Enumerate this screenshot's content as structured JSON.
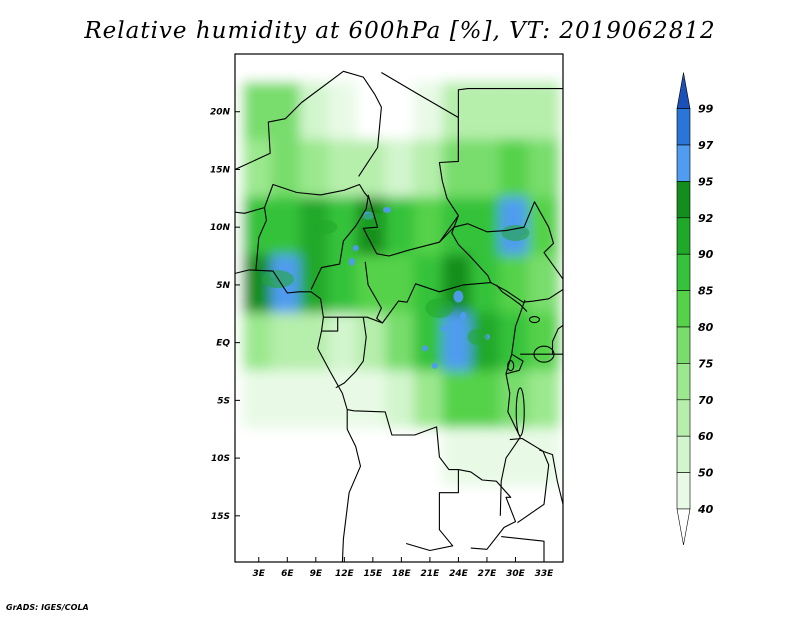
{
  "title": "Relative humidity at 600hPa [%], VT: 2019062812",
  "credit": "GrADS: IGES/COLA",
  "lat_labels": [
    "20N",
    "15N",
    "10N",
    "5N",
    "EQ",
    "5S",
    "10S",
    "15S"
  ],
  "lat_values": [
    20,
    15,
    10,
    5,
    0,
    -5,
    -10,
    -15
  ],
  "lon_labels": [
    "3E",
    "6E",
    "9E",
    "12E",
    "15E",
    "18E",
    "21E",
    "24E",
    "27E",
    "30E",
    "33E"
  ],
  "lon_values": [
    3,
    6,
    9,
    12,
    15,
    18,
    21,
    24,
    27,
    30,
    33
  ],
  "map_extent": {
    "lon_min": 0.5,
    "lon_max": 35,
    "lat_min": -19,
    "lat_max": 25
  },
  "colorbar": {
    "levels": [
      "40",
      "50",
      "60",
      "70",
      "75",
      "80",
      "85",
      "90",
      "92",
      "95",
      "97",
      "99"
    ],
    "colors": [
      "#ffffff",
      "#e8fae6",
      "#d2f5cd",
      "#b6eeac",
      "#9be88e",
      "#78dd6c",
      "#55d24a",
      "#36c23a",
      "#20a829",
      "#138e1c",
      "#4f9cf0",
      "#2a75d8",
      "#1a50b8"
    ]
  },
  "chart_data": {
    "type": "heatmap",
    "title": "Relative humidity at 600hPa [%], VT: 2019062812",
    "xlabel": "",
    "ylabel": "",
    "x_ticks": [
      "3E",
      "6E",
      "9E",
      "12E",
      "15E",
      "18E",
      "21E",
      "24E",
      "27E",
      "30E",
      "33E"
    ],
    "y_ticks": [
      "20N",
      "15N",
      "10N",
      "5N",
      "EQ",
      "5S",
      "10S",
      "15S"
    ],
    "xlim": [
      0.5,
      35
    ],
    "ylim": [
      -19,
      25
    ],
    "units": "%",
    "legend_placement": "right",
    "cells": [
      {
        "lon": 3,
        "lat": 20,
        "v": 75
      },
      {
        "lon": 6,
        "lat": 20,
        "v": 78
      },
      {
        "lon": 9,
        "lat": 20,
        "v": 55
      },
      {
        "lon": 12,
        "lat": 20,
        "v": 40
      },
      {
        "lon": 15,
        "lat": 20,
        "v": 30
      },
      {
        "lon": 18,
        "lat": 20,
        "v": 30
      },
      {
        "lon": 21,
        "lat": 20,
        "v": 45
      },
      {
        "lon": 24,
        "lat": 20,
        "v": 60
      },
      {
        "lon": 27,
        "lat": 20,
        "v": 65
      },
      {
        "lon": 30,
        "lat": 20,
        "v": 68
      },
      {
        "lon": 33,
        "lat": 20,
        "v": 60
      },
      {
        "lon": 3,
        "lat": 15,
        "v": 70
      },
      {
        "lon": 6,
        "lat": 15,
        "v": 75
      },
      {
        "lon": 9,
        "lat": 15,
        "v": 70
      },
      {
        "lon": 12,
        "lat": 15,
        "v": 68
      },
      {
        "lon": 15,
        "lat": 15,
        "v": 60
      },
      {
        "lon": 18,
        "lat": 15,
        "v": 55
      },
      {
        "lon": 21,
        "lat": 15,
        "v": 65
      },
      {
        "lon": 24,
        "lat": 15,
        "v": 75
      },
      {
        "lon": 27,
        "lat": 15,
        "v": 78
      },
      {
        "lon": 30,
        "lat": 15,
        "v": 80
      },
      {
        "lon": 33,
        "lat": 15,
        "v": 75
      },
      {
        "lon": 3,
        "lat": 10,
        "v": 85
      },
      {
        "lon": 6,
        "lat": 10,
        "v": 88
      },
      {
        "lon": 9,
        "lat": 10,
        "v": 90
      },
      {
        "lon": 12,
        "lat": 10,
        "v": 88
      },
      {
        "lon": 15,
        "lat": 10,
        "v": 93
      },
      {
        "lon": 18,
        "lat": 10,
        "v": 85
      },
      {
        "lon": 21,
        "lat": 10,
        "v": 80
      },
      {
        "lon": 24,
        "lat": 10,
        "v": 85
      },
      {
        "lon": 27,
        "lat": 10,
        "v": 86
      },
      {
        "lon": 30,
        "lat": 10,
        "v": 95
      },
      {
        "lon": 33,
        "lat": 10,
        "v": 84
      },
      {
        "lon": 3,
        "lat": 5,
        "v": 92
      },
      {
        "lon": 6,
        "lat": 5,
        "v": 95
      },
      {
        "lon": 9,
        "lat": 5,
        "v": 90
      },
      {
        "lon": 12,
        "lat": 5,
        "v": 85
      },
      {
        "lon": 15,
        "lat": 5,
        "v": 80
      },
      {
        "lon": 18,
        "lat": 5,
        "v": 80
      },
      {
        "lon": 21,
        "lat": 5,
        "v": 88
      },
      {
        "lon": 24,
        "lat": 5,
        "v": 92
      },
      {
        "lon": 27,
        "lat": 5,
        "v": 85
      },
      {
        "lon": 30,
        "lat": 5,
        "v": 80
      },
      {
        "lon": 33,
        "lat": 5,
        "v": 75
      },
      {
        "lon": 3,
        "lat": 0,
        "v": 70
      },
      {
        "lon": 6,
        "lat": 0,
        "v": 65
      },
      {
        "lon": 9,
        "lat": 0,
        "v": 60
      },
      {
        "lon": 12,
        "lat": 0,
        "v": 55
      },
      {
        "lon": 15,
        "lat": 0,
        "v": 65
      },
      {
        "lon": 18,
        "lat": 0,
        "v": 75
      },
      {
        "lon": 21,
        "lat": 0,
        "v": 88
      },
      {
        "lon": 24,
        "lat": 0,
        "v": 95
      },
      {
        "lon": 27,
        "lat": 0,
        "v": 90
      },
      {
        "lon": 30,
        "lat": 0,
        "v": 85
      },
      {
        "lon": 33,
        "lat": 0,
        "v": 80
      },
      {
        "lon": 3,
        "lat": -5,
        "v": 40
      },
      {
        "lon": 6,
        "lat": -5,
        "v": 40
      },
      {
        "lon": 9,
        "lat": -5,
        "v": 40
      },
      {
        "lon": 12,
        "lat": -5,
        "v": 45
      },
      {
        "lon": 15,
        "lat": -5,
        "v": 45
      },
      {
        "lon": 18,
        "lat": -5,
        "v": 55
      },
      {
        "lon": 21,
        "lat": -5,
        "v": 70
      },
      {
        "lon": 24,
        "lat": -5,
        "v": 80
      },
      {
        "lon": 27,
        "lat": -5,
        "v": 80
      },
      {
        "lon": 30,
        "lat": -5,
        "v": 75
      },
      {
        "lon": 33,
        "lat": -5,
        "v": 70
      },
      {
        "lon": 3,
        "lat": -10,
        "v": 30
      },
      {
        "lon": 6,
        "lat": -10,
        "v": 30
      },
      {
        "lon": 9,
        "lat": -10,
        "v": 30
      },
      {
        "lon": 12,
        "lat": -10,
        "v": 30
      },
      {
        "lon": 15,
        "lat": -10,
        "v": 30
      },
      {
        "lon": 18,
        "lat": -10,
        "v": 30
      },
      {
        "lon": 21,
        "lat": -10,
        "v": 35
      },
      {
        "lon": 24,
        "lat": -10,
        "v": 40
      },
      {
        "lon": 27,
        "lat": -10,
        "v": 45
      },
      {
        "lon": 30,
        "lat": -10,
        "v": 45
      },
      {
        "lon": 33,
        "lat": -10,
        "v": 40
      },
      {
        "lon": 3,
        "lat": -15,
        "v": 30
      },
      {
        "lon": 6,
        "lat": -15,
        "v": 30
      },
      {
        "lon": 9,
        "lat": -15,
        "v": 30
      },
      {
        "lon": 12,
        "lat": -15,
        "v": 30
      },
      {
        "lon": 15,
        "lat": -15,
        "v": 30
      },
      {
        "lon": 18,
        "lat": -15,
        "v": 30
      },
      {
        "lon": 21,
        "lat": -15,
        "v": 30
      },
      {
        "lon": 24,
        "lat": -15,
        "v": 30
      },
      {
        "lon": 27,
        "lat": -15,
        "v": 30
      },
      {
        "lon": 30,
        "lat": -15,
        "v": 35
      },
      {
        "lon": 33,
        "lat": -15,
        "v": 30
      }
    ]
  }
}
